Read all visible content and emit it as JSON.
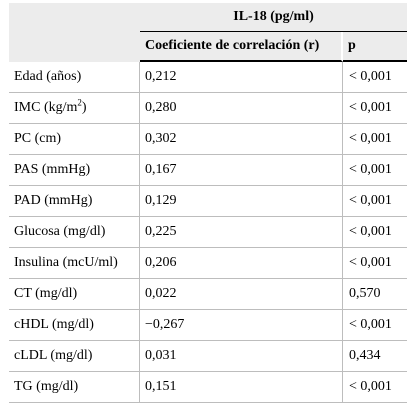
{
  "table": {
    "group_header": "IL-18 (pg/ml)",
    "col_coef": "Coeficiente de correlación (r)",
    "col_p": "p",
    "rows": [
      {
        "var": "Edad (años)",
        "coef": "0,212",
        "p": "< 0,001"
      },
      {
        "var": "IMC (kg/m",
        "var_sup": "2",
        "var_tail": ")",
        "coef": "0,280",
        "p": "< 0,001"
      },
      {
        "var": "PC (cm)",
        "coef": "0,302",
        "p": "< 0,001"
      },
      {
        "var": "PAS (mmHg)",
        "coef": "0,167",
        "p": "< 0,001"
      },
      {
        "var": "PAD (mmHg)",
        "coef": "0,129",
        "p": "< 0,001"
      },
      {
        "var": "Glucosa (mg/dl)",
        "coef": "0,225",
        "p": "< 0,001"
      },
      {
        "var": "Insulina (mcU/ml)",
        "coef": "0,206",
        "p": "< 0,001"
      },
      {
        "var": "CT (mg/dl)",
        "coef": "0,022",
        "p": "0,570"
      },
      {
        "var": "cHDL (mg/dl)",
        "coef": "−0,267",
        "p": "< 0,001"
      },
      {
        "var": "cLDL (mg/dl)",
        "coef": "0,031",
        "p": "0,434"
      },
      {
        "var": "TG (mg/dl)",
        "coef": "0,151",
        "p": "< 0,001"
      }
    ]
  }
}
